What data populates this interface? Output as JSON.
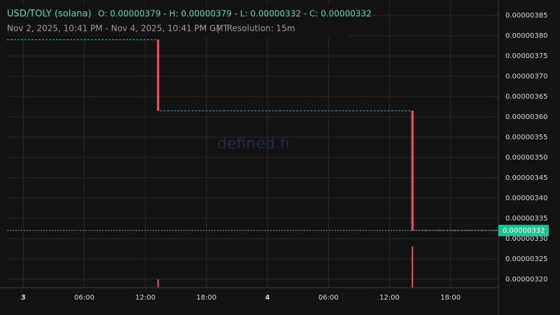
{
  "chart_data": {
    "type": "candlestick",
    "title": "USD/TOLY (solana)",
    "ohlc_text": "O: 0.00000379 - H: 0.00000379 - L: 0.00000332 - C: 0.00000332",
    "subtitle": "Nov 2, 2025, 10:41 PM - Nov 4, 2025, 10:41 PM GMT",
    "separator": "|",
    "resolution": "Resolution: 15m",
    "watermark": "defined.fi",
    "x": [
      13.25,
      38.25
    ],
    "open": [
      3.79e-06,
      3.615e-06
    ],
    "high": [
      3.79e-06,
      3.615e-06
    ],
    "low": [
      3.615e-06,
      3.32e-06
    ],
    "close": [
      3.615e-06,
      3.32e-06
    ],
    "candle_color": "#f0565a",
    "price_line": {
      "x": [
        -1.6,
        13.25,
        13.25,
        38.25,
        38.25,
        46.7
      ],
      "values": [
        3.79e-06,
        3.79e-06,
        3.615e-06,
        3.615e-06,
        3.32e-06,
        3.32e-06
      ],
      "color": "#4fa6b8"
    },
    "volume": {
      "x": [
        13.25,
        38.25
      ],
      "values": [
        2,
        10
      ],
      "color": "#f0565a",
      "axis": "y2"
    },
    "y2lim": [
      0,
      70
    ],
    "last_price": {
      "value": 3.32e-06,
      "label": "0.00000332",
      "color": "#1fc493"
    },
    "xlim": [
      -1.6,
      46.7
    ],
    "xticks": [
      {
        "value": 0,
        "label": "3"
      },
      {
        "value": 6,
        "label": "06:00"
      },
      {
        "value": 12,
        "label": "12:00"
      },
      {
        "value": 18,
        "label": "18:00"
      },
      {
        "value": 24,
        "label": "4"
      },
      {
        "value": 30,
        "label": "06:00"
      },
      {
        "value": 36,
        "label": "12:00"
      },
      {
        "value": 42,
        "label": "18:00"
      }
    ],
    "ylim": [
      3.179e-06,
      3.888e-06
    ],
    "yticks": [
      {
        "value": 3.2e-06,
        "label": "0.00000320"
      },
      {
        "value": 3.25e-06,
        "label": "0.00000325"
      },
      {
        "value": 3.3e-06,
        "label": "0.00000330"
      },
      {
        "value": 3.35e-06,
        "label": "0.00000335"
      },
      {
        "value": 3.4e-06,
        "label": "0.00000340"
      },
      {
        "value": 3.45e-06,
        "label": "0.00000345"
      },
      {
        "value": 3.5e-06,
        "label": "0.00000350"
      },
      {
        "value": 3.55e-06,
        "label": "0.00000355"
      },
      {
        "value": 3.6e-06,
        "label": "0.00000360"
      },
      {
        "value": 3.65e-06,
        "label": "0.00000365"
      },
      {
        "value": 3.7e-06,
        "label": "0.00000370"
      },
      {
        "value": 3.75e-06,
        "label": "0.00000375"
      },
      {
        "value": 3.8e-06,
        "label": "0.00000380"
      },
      {
        "value": 3.85e-06,
        "label": "0.00000385"
      }
    ],
    "grid": true
  }
}
